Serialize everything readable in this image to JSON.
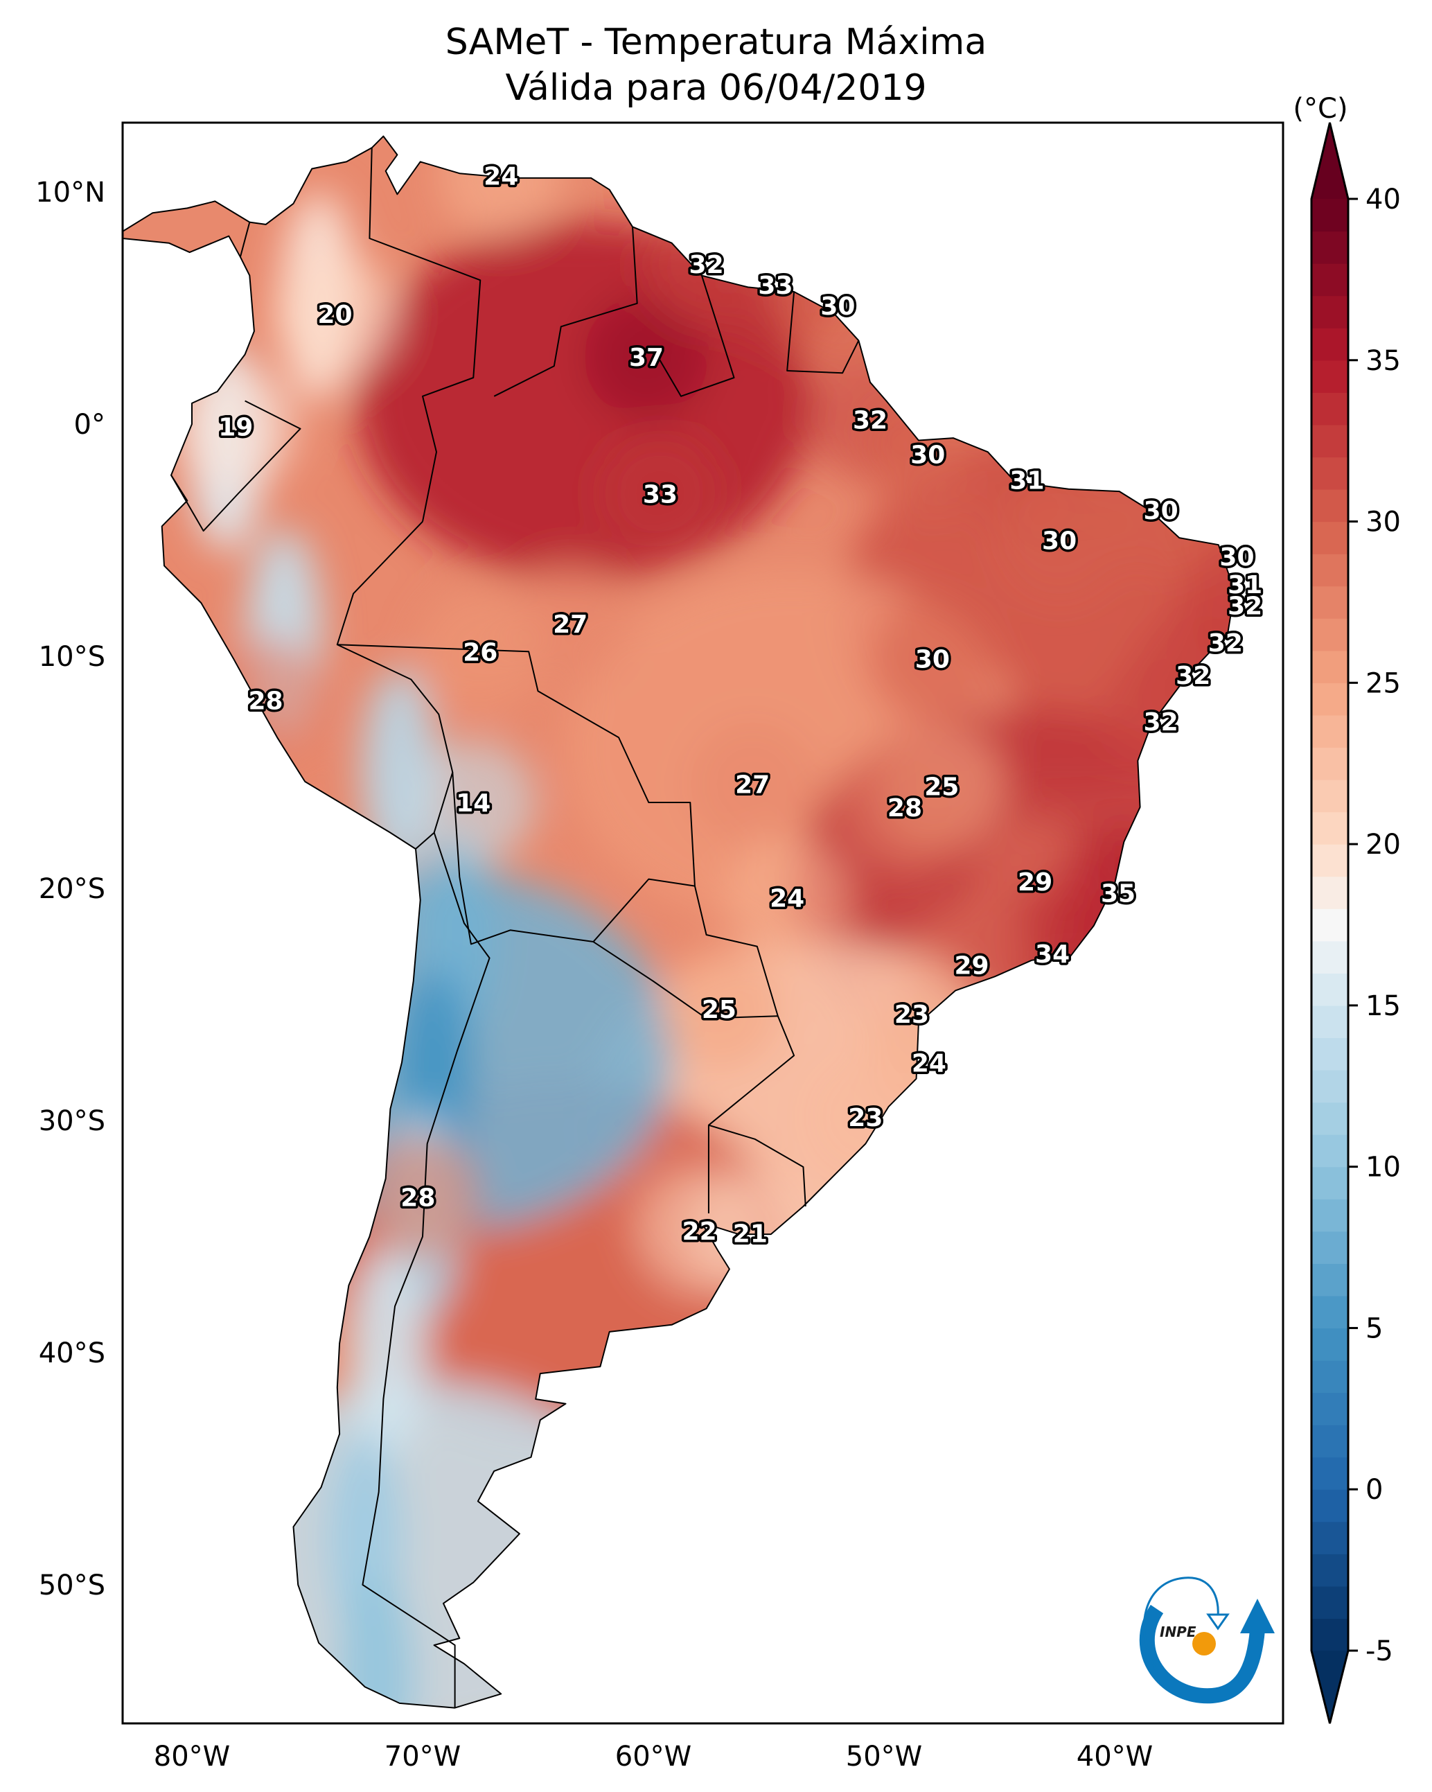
{
  "title": {
    "line1": "SAMeT - Temperatura Máxima",
    "line2": "Válida para 06/04/2019"
  },
  "logo": {
    "text": "INPE",
    "colors": {
      "blue": "#0b78bd",
      "orange": "#f29a0b"
    }
  },
  "chart_data": {
    "type": "heatmap",
    "subtype": "geographic-filled-contour",
    "title": "SAMeT - Temperatura Máxima",
    "subtitle": "Válida para 06/04/2019",
    "variable": "Maximum temperature",
    "units_label": "(°C)",
    "colormap": "RdBu_r",
    "extent": {
      "lon": [
        -83,
        -33
      ],
      "lat": [
        -56,
        13
      ]
    },
    "x_ticks": [
      {
        "value": -80,
        "label": "80°W"
      },
      {
        "value": -70,
        "label": "70°W"
      },
      {
        "value": -60,
        "label": "60°W"
      },
      {
        "value": -50,
        "label": "50°W"
      },
      {
        "value": -40,
        "label": "40°W"
      }
    ],
    "y_ticks": [
      {
        "value": 10,
        "label": "10°N"
      },
      {
        "value": 0,
        "label": "0°"
      },
      {
        "value": -10,
        "label": "10°S"
      },
      {
        "value": -20,
        "label": "20°S"
      },
      {
        "value": -30,
        "label": "30°S"
      },
      {
        "value": -40,
        "label": "40°S"
      },
      {
        "value": -50,
        "label": "50°S"
      }
    ],
    "colorbar": {
      "range": [
        -5,
        40
      ],
      "extend": "both",
      "ticks": [
        {
          "value": 40,
          "label": "40"
        },
        {
          "value": 35,
          "label": "35"
        },
        {
          "value": 30,
          "label": "30"
        },
        {
          "value": 25,
          "label": "25"
        },
        {
          "value": 20,
          "label": "20"
        },
        {
          "value": 15,
          "label": "15"
        },
        {
          "value": 10,
          "label": "10"
        },
        {
          "value": 5,
          "label": "5"
        },
        {
          "value": 0,
          "label": "0"
        },
        {
          "value": -5,
          "label": "-5"
        }
      ],
      "stops": [
        {
          "value": -5,
          "color": "#053061"
        },
        {
          "value": 0,
          "color": "#2166ac"
        },
        {
          "value": 5,
          "color": "#4393c3"
        },
        {
          "value": 10,
          "color": "#92c5de"
        },
        {
          "value": 15,
          "color": "#d1e5f0"
        },
        {
          "value": 17.5,
          "color": "#f7f7f7"
        },
        {
          "value": 20,
          "color": "#fddbc7"
        },
        {
          "value": 25,
          "color": "#f4a582"
        },
        {
          "value": 30,
          "color": "#d6604d"
        },
        {
          "value": 35,
          "color": "#b2182b"
        },
        {
          "value": 40,
          "color": "#67001f"
        }
      ]
    },
    "annotations": [
      {
        "value": 24,
        "lon": -66.6,
        "lat": 10.7
      },
      {
        "value": 20,
        "lon": -73.8,
        "lat": 4.75
      },
      {
        "value": 19,
        "lon": -78.1,
        "lat": -0.1
      },
      {
        "value": 37,
        "lon": -60.3,
        "lat": 2.9
      },
      {
        "value": 33,
        "lon": -59.7,
        "lat": -3.0
      },
      {
        "value": 32,
        "lon": -57.7,
        "lat": 6.9
      },
      {
        "value": 33,
        "lon": -54.7,
        "lat": 6.0
      },
      {
        "value": 30,
        "lon": -52.0,
        "lat": 5.1
      },
      {
        "value": 32,
        "lon": -50.6,
        "lat": 0.2
      },
      {
        "value": 30,
        "lon": -48.1,
        "lat": -1.3
      },
      {
        "value": 31,
        "lon": -43.8,
        "lat": -2.4
      },
      {
        "value": 30,
        "lon": -38.0,
        "lat": -3.7
      },
      {
        "value": 30,
        "lon": -42.4,
        "lat": -5.0
      },
      {
        "value": 30,
        "lon": -34.7,
        "lat": -5.7
      },
      {
        "value": 31,
        "lon": -34.35,
        "lat": -6.9
      },
      {
        "value": 32,
        "lon": -34.35,
        "lat": -7.8
      },
      {
        "value": 32,
        "lon": -35.2,
        "lat": -9.4
      },
      {
        "value": 32,
        "lon": -36.6,
        "lat": -10.8
      },
      {
        "value": 32,
        "lon": -38.0,
        "lat": -12.8
      },
      {
        "value": 27,
        "lon": -63.6,
        "lat": -8.6
      },
      {
        "value": 26,
        "lon": -67.5,
        "lat": -9.8
      },
      {
        "value": 28,
        "lon": -76.8,
        "lat": -11.9
      },
      {
        "value": 30,
        "lon": -47.9,
        "lat": -10.1
      },
      {
        "value": 14,
        "lon": -67.8,
        "lat": -16.3
      },
      {
        "value": 27,
        "lon": -55.7,
        "lat": -15.5
      },
      {
        "value": 25,
        "lon": -47.5,
        "lat": -15.6
      },
      {
        "value": 28,
        "lon": -49.1,
        "lat": -16.5
      },
      {
        "value": 24,
        "lon": -54.2,
        "lat": -20.4
      },
      {
        "value": 29,
        "lon": -43.45,
        "lat": -19.7
      },
      {
        "value": 35,
        "lon": -39.85,
        "lat": -20.2
      },
      {
        "value": 34,
        "lon": -42.7,
        "lat": -22.8
      },
      {
        "value": 29,
        "lon": -46.2,
        "lat": -23.3
      },
      {
        "value": 25,
        "lon": -57.15,
        "lat": -25.2
      },
      {
        "value": 23,
        "lon": -48.8,
        "lat": -25.4
      },
      {
        "value": 24,
        "lon": -48.05,
        "lat": -27.5
      },
      {
        "value": 23,
        "lon": -50.8,
        "lat": -29.85
      },
      {
        "value": 28,
        "lon": -70.2,
        "lat": -33.3
      },
      {
        "value": 22,
        "lon": -58.0,
        "lat": -34.75
      },
      {
        "value": 21,
        "lon": -55.8,
        "lat": -34.85
      }
    ],
    "regions": [
      {
        "name": "amazon-north",
        "approx_value": 35,
        "lon": -63,
        "lat": 1
      },
      {
        "name": "northeast-brazil",
        "approx_value": 31,
        "lon": -42,
        "lat": -8
      },
      {
        "name": "central-brazil",
        "approx_value": 26,
        "lon": -54,
        "lat": -14
      },
      {
        "name": "southeast-brazil",
        "approx_value": 33,
        "lon": -44,
        "lat": -20
      },
      {
        "name": "southern-brazil-uruguay",
        "approx_value": 22,
        "lon": -53,
        "lat": -30
      },
      {
        "name": "pampas-argentina",
        "approx_value": 30,
        "lon": -64,
        "lat": -36
      },
      {
        "name": "andes",
        "approx_value": 8,
        "lon": -69,
        "lat": -27
      },
      {
        "name": "patagonia",
        "approx_value": 14,
        "lon": -70,
        "lat": -49
      }
    ]
  }
}
